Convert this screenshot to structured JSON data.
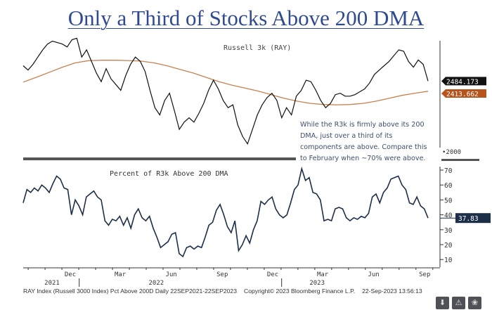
{
  "title": "Only a Third of Stocks Above 200 DMA",
  "annotation": "While the R3k is firmly above its 200 DMA, just over a third of its components are above. Compare this to February when ~70% were above.",
  "footer": {
    "left": "RAY Index (Russell 3000 Index) Pct Above 200D  Daily 22SEP2021-22SEP2023",
    "copyright": "Copyright© 2023 Bloomberg Finance L.P.",
    "timestamp": "22-Sep-2023 13:56:13"
  },
  "icons": [
    "download-icon",
    "alert-icon",
    "share-icon"
  ],
  "colors": {
    "price": "#111111",
    "ma": "#c8804f",
    "pct": "#1c2f48",
    "title": "#2f4a8f",
    "ma_label_bg": "#b9531c"
  },
  "x_axis": {
    "months": [
      "Dec",
      "Mar",
      "Jun",
      "Sep",
      "Dec",
      "Mar",
      "Jun",
      "Sep"
    ],
    "years": [
      "2021",
      "2022",
      "2023"
    ]
  },
  "chart_data": [
    {
      "type": "line",
      "title": "Russell 3k (RAY)",
      "x_range": [
        "2021-09-22",
        "2023-09-22"
      ],
      "ylim": [
        2000,
        2850
      ],
      "y_ticks": [
        2000
      ],
      "grid": false,
      "series": [
        {
          "name": "RAY",
          "last_label": "2484.173",
          "values": [
            2590,
            2560,
            2600,
            2650,
            2700,
            2740,
            2760,
            2750,
            2740,
            2720,
            2770,
            2780,
            2650,
            2700,
            2620,
            2540,
            2480,
            2570,
            2500,
            2460,
            2420,
            2520,
            2600,
            2650,
            2620,
            2550,
            2420,
            2300,
            2250,
            2350,
            2400,
            2280,
            2150,
            2200,
            2230,
            2200,
            2260,
            2330,
            2420,
            2490,
            2430,
            2350,
            2300,
            2320,
            2180,
            2100,
            2050,
            2150,
            2250,
            2320,
            2370,
            2400,
            2350,
            2230,
            2300,
            2250,
            2380,
            2420,
            2490,
            2480,
            2420,
            2350,
            2300,
            2330,
            2390,
            2400,
            2380,
            2380,
            2390,
            2410,
            2430,
            2470,
            2530,
            2560,
            2590,
            2620,
            2660,
            2700,
            2690,
            2620,
            2580,
            2630,
            2600,
            2484.173
          ]
        },
        {
          "name": "200 DMA",
          "last_label": "2413.662",
          "values": [
            2477,
            2510,
            2545,
            2580,
            2610,
            2625,
            2628,
            2628,
            2626,
            2622,
            2610,
            2590,
            2565,
            2540,
            2510,
            2480,
            2455,
            2435,
            2415,
            2390,
            2365,
            2345,
            2330,
            2322,
            2320,
            2322,
            2330,
            2345,
            2365,
            2385,
            2400,
            2413.662
          ]
        }
      ]
    },
    {
      "type": "line",
      "title": "Percent of R3k Above 200 DMA",
      "x_range": [
        "2021-09-22",
        "2023-09-22"
      ],
      "ylim": [
        7,
        72
      ],
      "y_ticks": [
        10,
        20,
        30,
        40,
        50,
        60,
        70
      ],
      "grid": false,
      "series": [
        {
          "last_label": "37.83",
          "values": [
            48,
            57,
            55,
            58,
            56,
            60,
            58,
            55,
            61,
            66,
            64,
            58,
            57,
            40,
            50,
            46,
            40,
            52,
            54,
            56,
            52,
            50,
            36,
            33,
            37,
            36,
            39,
            33,
            38,
            31,
            40,
            44,
            38,
            36,
            39,
            31,
            25,
            18,
            20,
            22,
            27,
            28,
            14,
            12,
            18,
            19,
            17,
            19,
            18,
            25,
            33,
            35,
            43,
            47,
            40,
            32,
            28,
            36,
            16,
            20,
            26,
            21,
            30,
            36,
            49,
            47,
            50,
            52,
            44,
            40,
            38,
            40,
            48,
            57,
            60,
            71,
            63,
            65,
            55,
            54,
            50,
            36,
            37,
            36,
            44,
            45,
            44,
            38,
            36,
            38,
            37,
            39,
            38,
            41,
            52,
            54,
            48,
            55,
            58,
            64,
            65,
            66,
            60,
            57,
            48,
            47,
            52,
            46,
            44,
            37.83
          ]
        }
      ]
    }
  ]
}
